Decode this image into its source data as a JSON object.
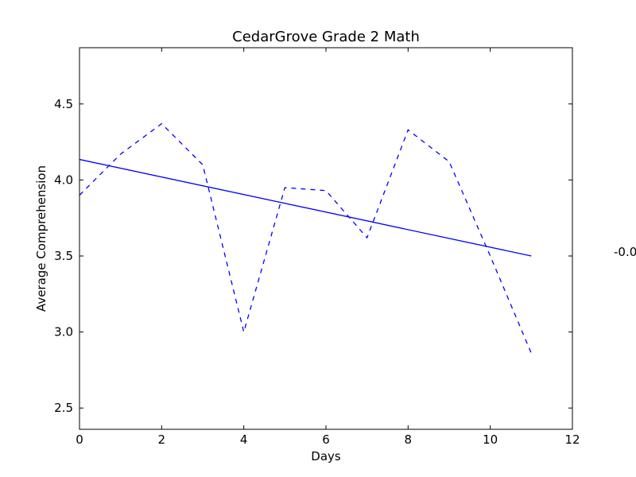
{
  "chart_data": {
    "type": "line",
    "title": "CedarGrove Grade 2 Math",
    "xlabel": "Days",
    "ylabel": "Average Comprehension",
    "xlim": [
      0,
      12
    ],
    "ylim": [
      2.36,
      4.87
    ],
    "xticks": [
      0,
      2,
      4,
      6,
      8,
      10,
      12
    ],
    "yticks": [
      2.5,
      3.0,
      3.5,
      4.0,
      4.5
    ],
    "xtick_labels": [
      "0",
      "2",
      "4",
      "6",
      "8",
      "10",
      "12"
    ],
    "ytick_labels": [
      "2.5",
      "3.0",
      "3.5",
      "4.0",
      "4.5"
    ],
    "grid": false,
    "series": [
      {
        "style": "dashed",
        "color": "#0000ff",
        "x": [
          0,
          1,
          2,
          3,
          4,
          5,
          6,
          7,
          8,
          9,
          10,
          11
        ],
        "y": [
          3.9,
          4.17,
          4.37,
          4.1,
          3.0,
          3.95,
          3.93,
          3.62,
          4.33,
          4.12,
          3.5,
          2.86
        ]
      },
      {
        "style": "solid",
        "color": "#0000ff",
        "x": [
          0,
          11
        ],
        "y": [
          4.135,
          3.5
        ]
      }
    ],
    "annotation": "-0.0"
  }
}
